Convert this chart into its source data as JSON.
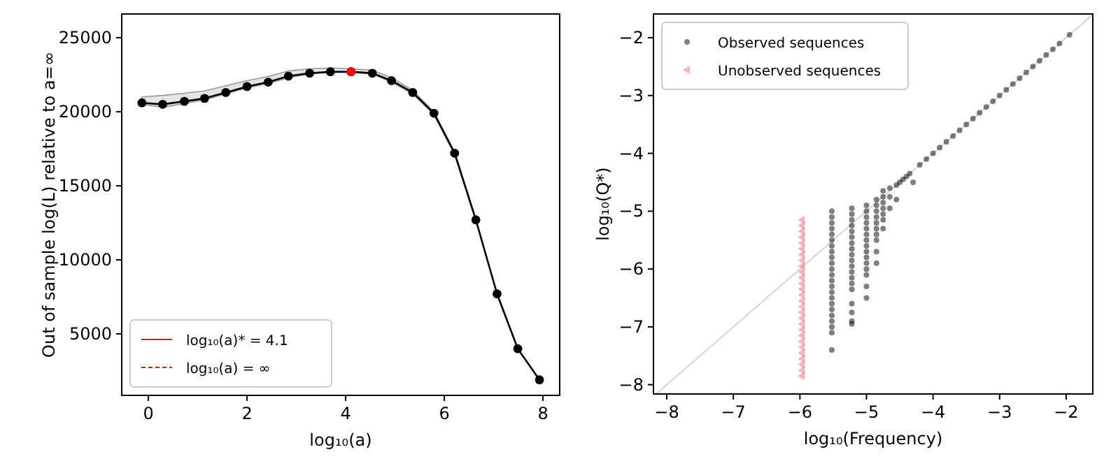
{
  "chart_data": [
    {
      "type": "line",
      "xlabel": "log₁₀(a)",
      "ylabel": "Out of sample log(L) relative to a=∞",
      "xlim": [
        -0.54,
        8.34
      ],
      "ylim": [
        850,
        26600
      ],
      "xticks": [
        0,
        2,
        4,
        6,
        8
      ],
      "yticks": [
        5000,
        10000,
        15000,
        20000,
        25000
      ],
      "legend": "bottom left",
      "grid": false,
      "series": [
        {
          "color": "#000000",
          "marker": "circle",
          "x": [
            -0.13,
            0.29,
            0.73,
            1.14,
            1.57,
            2.0,
            2.43,
            2.84,
            3.27,
            3.69,
            4.11,
            4.54,
            4.93,
            5.36,
            5.79,
            6.21,
            6.64,
            7.07,
            7.49,
            7.93
          ],
          "values": [
            20600,
            20500,
            20700,
            20900,
            21300,
            21700,
            22000,
            22400,
            22600,
            22700,
            22700,
            22600,
            22100,
            21300,
            19900,
            17200,
            12700,
            7700,
            4000,
            1900
          ],
          "upper": [
            21000,
            21100,
            21250,
            21400,
            21750,
            22100,
            22380,
            22750,
            22900,
            22950,
            22900,
            22800,
            22300,
            21450,
            20000,
            17300,
            12750,
            7700,
            4000,
            1900
          ],
          "lower": [
            20500,
            20300,
            20550,
            20800,
            21200,
            21600,
            21900,
            22300,
            22550,
            22650,
            22650,
            22550,
            22000,
            21200,
            19800,
            17100,
            12650,
            7700,
            4000,
            1900
          ]
        },
        {
          "name": "log₁₀(a)* = 4.1",
          "color": "#ff0000",
          "marker": "circle",
          "x": [
            4.11
          ],
          "values": [
            22700
          ]
        },
        {
          "name": "log₁₀(a) = ∞",
          "color": "#ff0000",
          "line_style": "dashed"
        }
      ]
    },
    {
      "type": "scatter",
      "xlabel": "log₁₀(Frequency)",
      "ylabel": "log₁₀(Q*)",
      "xlim": [
        -8.2,
        -1.6
      ],
      "ylim": [
        -8.16,
        -1.59
      ],
      "xticks": [
        -8,
        -7,
        -6,
        -5,
        -4,
        -3,
        -2
      ],
      "yticks": [
        -8,
        -7,
        -6,
        -5,
        -4,
        -3,
        -2
      ],
      "legend": "top left",
      "grid": false,
      "series": [
        {
          "type": "line",
          "color": "#cccccc",
          "x": [
            -8.16,
            -1.6
          ],
          "values": [
            -8.16,
            -1.6
          ]
        },
        {
          "name": "Observed sequences",
          "color": "#000000",
          "marker": "circle",
          "x": [
            -5.52,
            -5.52,
            -5.52,
            -5.52,
            -5.52,
            -5.52,
            -5.52,
            -5.52,
            -5.52,
            -5.52,
            -5.52,
            -5.52,
            -5.52,
            -5.52,
            -5.52,
            -5.52,
            -5.52,
            -5.52,
            -5.52,
            -5.52,
            -5.52,
            -5.52,
            -5.52,
            -5.22,
            -5.22,
            -5.22,
            -5.22,
            -5.22,
            -5.22,
            -5.22,
            -5.22,
            -5.22,
            -5.22,
            -5.22,
            -5.22,
            -5.22,
            -5.22,
            -5.22,
            -5.22,
            -5.22,
            -5.22,
            -5.22,
            -5.0,
            -5.0,
            -5.0,
            -5.0,
            -5.0,
            -5.0,
            -5.0,
            -5.0,
            -5.0,
            -5.0,
            -5.0,
            -5.0,
            -5.0,
            -5.0,
            -5.0,
            -4.85,
            -4.85,
            -4.85,
            -4.85,
            -4.85,
            -4.85,
            -4.85,
            -4.85,
            -4.85,
            -4.85,
            -4.75,
            -4.75,
            -4.75,
            -4.75,
            -4.75,
            -4.75,
            -4.75,
            -4.65,
            -4.65,
            -4.65,
            -4.55,
            -4.55,
            -4.5,
            -4.45,
            -4.4,
            -4.35,
            -4.3,
            -4.2,
            -4.1,
            -4.0,
            -3.9,
            -3.8,
            -3.7,
            -3.6,
            -3.5,
            -3.4,
            -3.3,
            -3.2,
            -3.1,
            -3.0,
            -2.9,
            -2.8,
            -2.7,
            -2.6,
            -2.5,
            -2.4,
            -2.3,
            -2.2,
            -2.1,
            -1.95
          ],
          "values": [
            -5.0,
            -5.1,
            -5.2,
            -5.3,
            -5.4,
            -5.5,
            -5.6,
            -5.7,
            -5.8,
            -5.9,
            -6.0,
            -6.1,
            -6.2,
            -6.3,
            -6.4,
            -6.5,
            -6.6,
            -6.7,
            -6.8,
            -6.9,
            -7.0,
            -7.1,
            -7.4,
            -4.95,
            -5.05,
            -5.15,
            -5.25,
            -5.35,
            -5.45,
            -5.55,
            -5.65,
            -5.75,
            -5.85,
            -5.95,
            -6.05,
            -6.15,
            -6.25,
            -6.35,
            -6.6,
            -6.75,
            -6.95,
            -6.9,
            -4.9,
            -5.0,
            -5.1,
            -5.2,
            -5.3,
            -5.4,
            -5.5,
            -5.6,
            -5.7,
            -5.8,
            -5.9,
            -6.0,
            -6.1,
            -6.3,
            -6.5,
            -4.8,
            -4.9,
            -5.0,
            -5.1,
            -5.2,
            -5.3,
            -5.4,
            -5.5,
            -5.7,
            -5.9,
            -4.65,
            -4.75,
            -4.85,
            -4.95,
            -5.05,
            -5.15,
            -5.3,
            -4.6,
            -4.75,
            -4.95,
            -4.55,
            -4.8,
            -4.5,
            -4.45,
            -4.4,
            -4.35,
            -4.5,
            -4.2,
            -4.1,
            -4.0,
            -3.9,
            -3.8,
            -3.7,
            -3.6,
            -3.5,
            -3.4,
            -3.3,
            -3.2,
            -3.1,
            -3.0,
            -2.9,
            -2.8,
            -2.7,
            -2.6,
            -2.5,
            -2.4,
            -2.3,
            -2.2,
            -2.1,
            -1.95
          ]
        },
        {
          "name": "Unobserved sequences",
          "color": "#ff0000",
          "marker": "triangle",
          "x": [
            -5.97,
            -5.97,
            -5.97,
            -5.97,
            -5.97,
            -5.97,
            -5.97,
            -5.97,
            -5.97,
            -5.97,
            -5.97,
            -5.97,
            -5.97,
            -5.97,
            -5.97,
            -5.97,
            -5.97,
            -5.97,
            -5.97,
            -5.97,
            -5.97,
            -5.97,
            -5.97,
            -5.97,
            -5.97,
            -5.97,
            -5.97,
            -5.97
          ],
          "values": [
            -5.15,
            -5.25,
            -5.35,
            -5.45,
            -5.55,
            -5.65,
            -5.75,
            -5.85,
            -5.95,
            -6.05,
            -6.15,
            -6.25,
            -6.35,
            -6.45,
            -6.55,
            -6.65,
            -6.75,
            -6.85,
            -6.95,
            -7.05,
            -7.15,
            -7.25,
            -7.35,
            -7.45,
            -7.55,
            -7.65,
            -7.75,
            -7.85
          ]
        }
      ]
    }
  ]
}
